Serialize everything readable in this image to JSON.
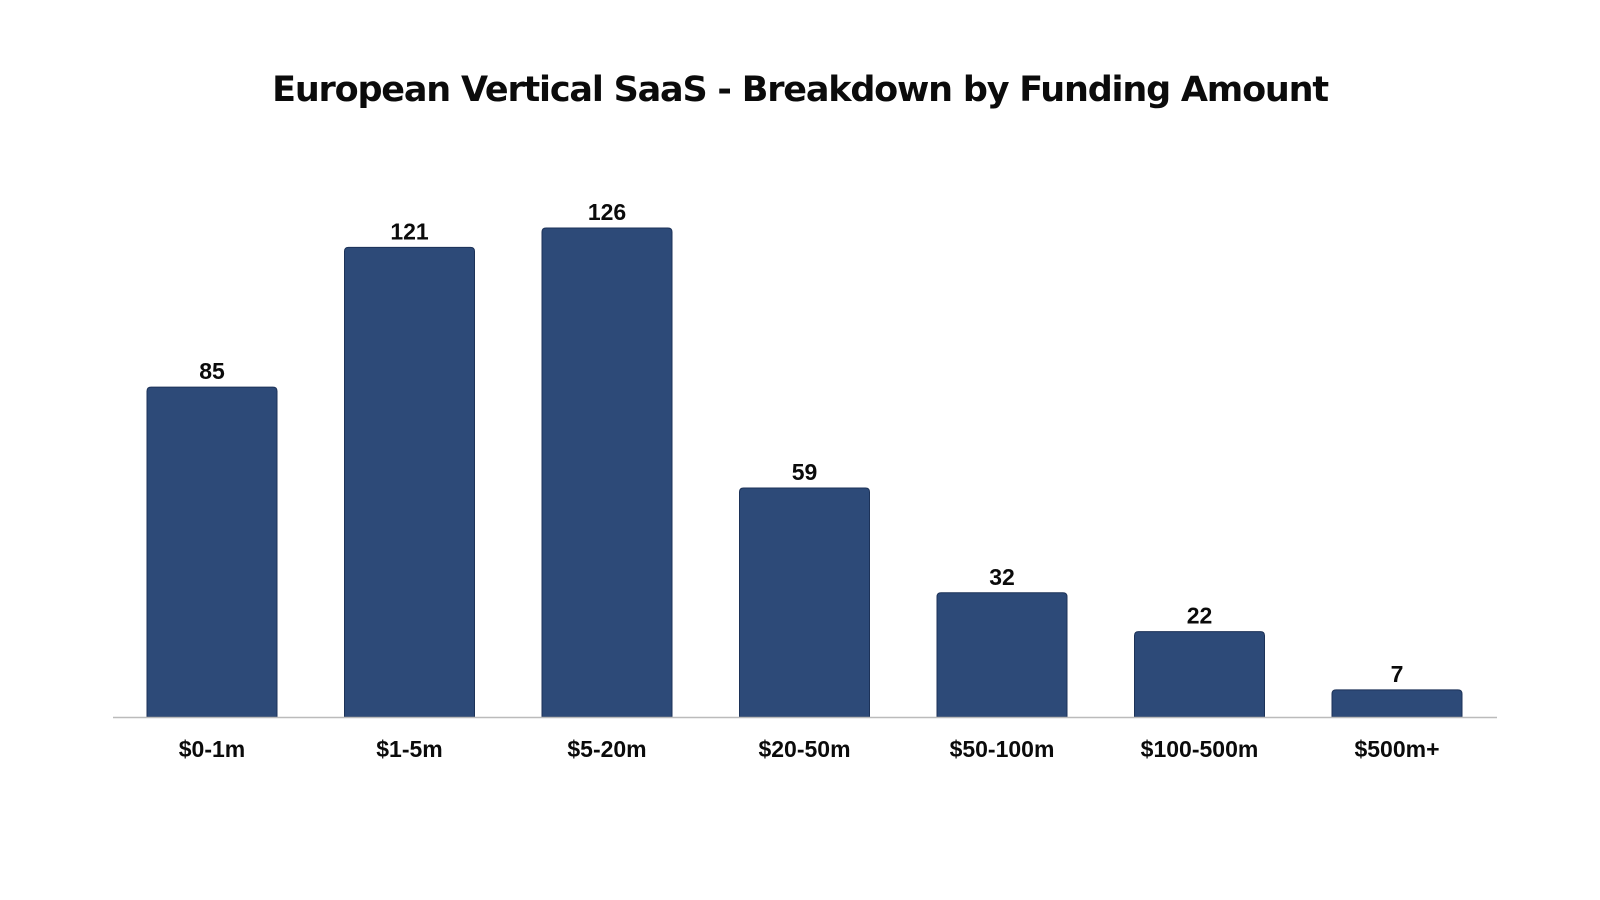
{
  "chart_data": {
    "type": "bar",
    "title": "European Vertical SaaS - Breakdown by Funding Amount",
    "xlabel": "",
    "ylabel": "",
    "categories": [
      "$0-1m",
      "$1-5m",
      "$5-20m",
      "$20-50m",
      "$50-100m",
      "$100-500m",
      "$500m+"
    ],
    "values": [
      85,
      121,
      126,
      59,
      32,
      22,
      7
    ],
    "ylim": [
      0,
      126
    ],
    "grid": false,
    "legend": "none",
    "data_labels": true,
    "colors": {
      "bar": "#2d4a78",
      "bar_edge": "#1c3258",
      "axis": "#bbbbbb",
      "text": "#0b0b0b"
    }
  }
}
